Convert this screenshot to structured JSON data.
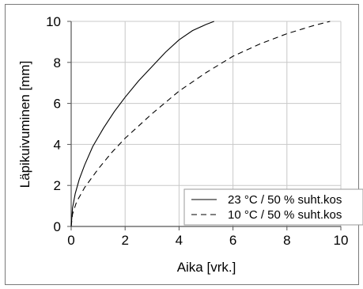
{
  "chart_data": {
    "type": "line",
    "xlabel": "Aika [vrk.]",
    "ylabel": "Läpikuivuminen [mm]",
    "xlim": [
      0,
      10
    ],
    "ylim": [
      0,
      10
    ],
    "x_ticks": [
      "0",
      "2",
      "4",
      "6",
      "8",
      "10"
    ],
    "y_ticks": [
      "0",
      "2",
      "4",
      "6",
      "8",
      "10"
    ],
    "grid": true,
    "legend_position": "bottom-right",
    "series": [
      {
        "name": "23 °C / 50 % suht.kos",
        "line_style": "solid",
        "color": "#000000",
        "x": [
          0,
          0.05,
          0.15,
          0.3,
          0.5,
          0.8,
          1.2,
          1.6,
          2.0,
          2.5,
          3.0,
          3.5,
          4.0,
          4.5,
          5.0,
          5.3
        ],
        "y": [
          0,
          0.9,
          1.6,
          2.3,
          3.0,
          3.9,
          4.8,
          5.6,
          6.3,
          7.1,
          7.8,
          8.5,
          9.1,
          9.55,
          9.85,
          10.0
        ]
      },
      {
        "name": "10 °C / 50 % suht.kos",
        "line_style": "dashed",
        "color": "#000000",
        "x": [
          0,
          0.05,
          0.2,
          0.5,
          1.0,
          1.5,
          2.0,
          3.0,
          4.0,
          5.0,
          6.0,
          7.0,
          8.0,
          9.0,
          9.6
        ],
        "y": [
          0,
          0.6,
          1.2,
          1.9,
          2.8,
          3.6,
          4.3,
          5.5,
          6.6,
          7.5,
          8.3,
          8.9,
          9.4,
          9.8,
          10.0
        ]
      }
    ]
  }
}
